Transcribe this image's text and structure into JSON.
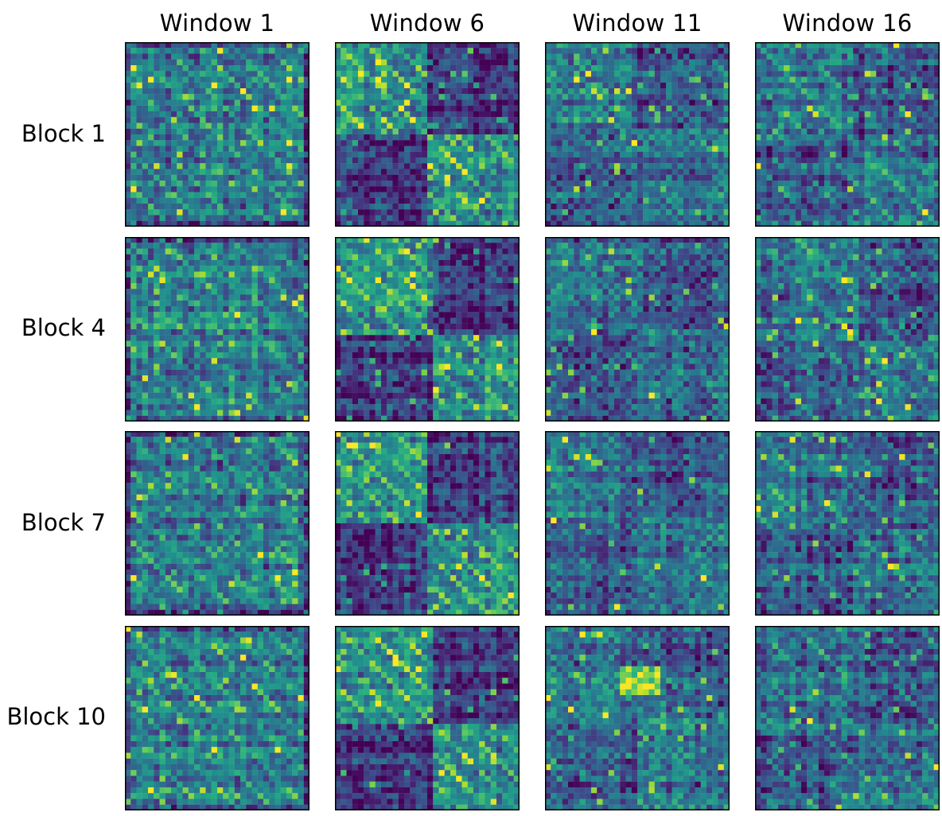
{
  "chart_data": {
    "type": "heatmap",
    "title": "",
    "colormap": "viridis",
    "column_titles": [
      "Window 1",
      "Window 6",
      "Window 11",
      "Window 16"
    ],
    "row_labels": [
      "Block 1",
      "Block 4",
      "Block 7",
      "Block 10"
    ],
    "matrix_size": 32,
    "value_range": [
      0,
      1
    ],
    "axes_ticks": "none",
    "note": "Each panel is a 32x32 attention/similarity heatmap; per-cell values are not labelled in the figure."
  }
}
